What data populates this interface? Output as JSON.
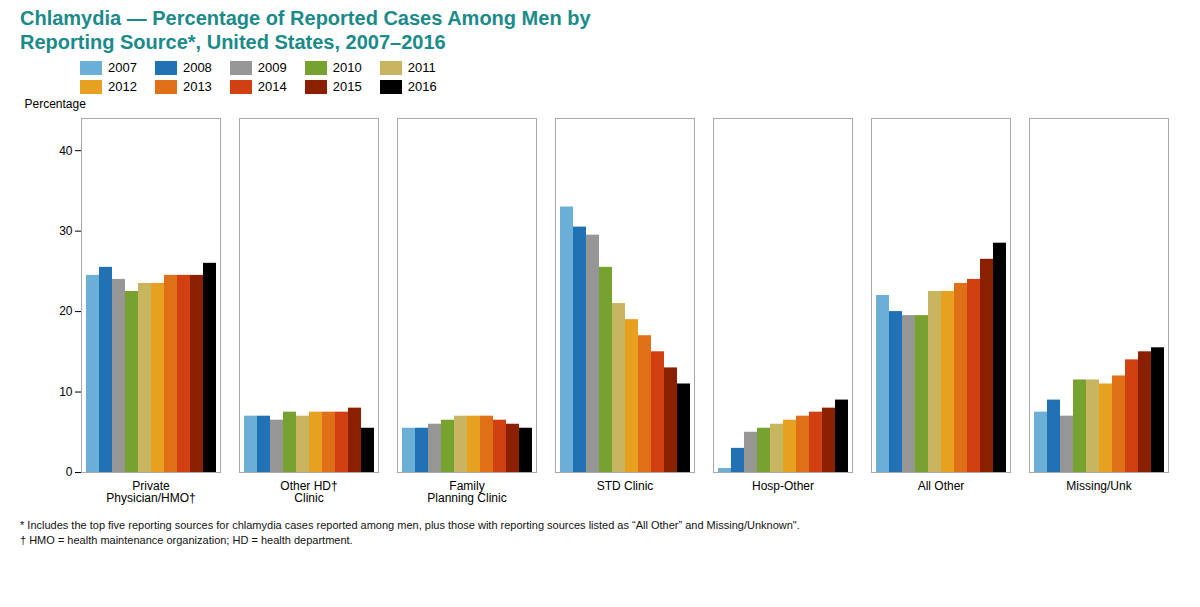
{
  "chart_data": {
    "type": "bar",
    "title": "Chlamydia — Percentage of Reported Cases Among Men by\nReporting Source*, United States, 2007–2016",
    "ylabel": "Percentage",
    "annotations": [
      "* Includes the top five reporting sources for chlamydia cases reported among men, plus those with reporting sources listed as “All Other” and Missing/Unknown\".",
      "† HMO = health maintenance organization; HD = health department."
    ],
    "categories": [
      "Private\nPhysician/HMO†",
      "Other HD†\nClinic",
      "Family\nPlanning Clinic",
      "STD Clinic",
      "Hosp-Other",
      "All Other",
      "Missing/Unk"
    ],
    "series": [
      {
        "name": "2007",
        "color": "#6baed6",
        "values": [
          24.5,
          7.0,
          5.5,
          33.0,
          0.5,
          22.0,
          7.5
        ]
      },
      {
        "name": "2008",
        "color": "#2171b5",
        "values": [
          25.5,
          7.0,
          5.5,
          30.5,
          3.0,
          20.0,
          9.0
        ]
      },
      {
        "name": "2009",
        "color": "#969696",
        "values": [
          24.0,
          6.5,
          6.0,
          29.5,
          5.0,
          19.5,
          7.0
        ]
      },
      {
        "name": "2010",
        "color": "#78a22f",
        "values": [
          22.5,
          7.5,
          6.5,
          25.5,
          5.5,
          19.5,
          11.5
        ]
      },
      {
        "name": "2011",
        "color": "#c8b560",
        "values": [
          23.5,
          7.0,
          7.0,
          21.0,
          6.0,
          22.5,
          11.5
        ]
      },
      {
        "name": "2012",
        "color": "#e8a020",
        "values": [
          23.5,
          7.5,
          7.0,
          19.0,
          6.5,
          22.5,
          11.0
        ]
      },
      {
        "name": "2013",
        "color": "#e07018",
        "values": [
          24.5,
          7.5,
          7.0,
          17.0,
          7.0,
          23.5,
          12.0
        ]
      },
      {
        "name": "2014",
        "color": "#d04010",
        "values": [
          24.5,
          7.5,
          6.5,
          15.0,
          7.5,
          24.0,
          14.0
        ]
      },
      {
        "name": "2015",
        "color": "#8b2000",
        "values": [
          24.5,
          8.0,
          6.0,
          13.0,
          8.0,
          26.5,
          15.0
        ]
      },
      {
        "name": "2016",
        "color": "#000000",
        "values": [
          26.0,
          5.5,
          5.5,
          11.0,
          9.0,
          28.5,
          15.5
        ]
      }
    ],
    "ylim": [
      0,
      44
    ],
    "yticks": [
      0,
      10,
      20,
      30,
      40
    ],
    "grid": false
  }
}
